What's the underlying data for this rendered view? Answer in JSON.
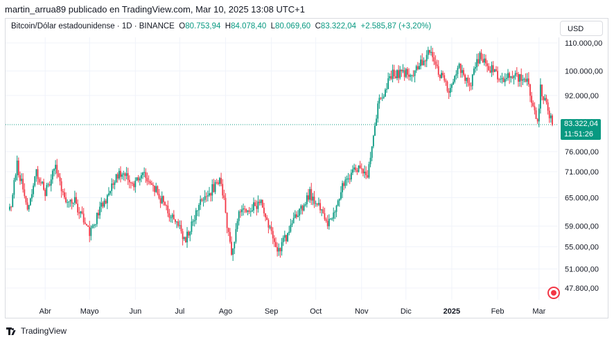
{
  "header": {
    "publisher": "martin_arrua89 publicado en TradingView.com, Mar 10, 2025 13:08 UTC+1"
  },
  "legend": {
    "symbol": "Bitcoin/Dólar estadounidense · 1D · BINANCE",
    "o_label": "O",
    "o_value": "80.753,94",
    "h_label": "H",
    "h_value": "84.078,40",
    "l_label": "L",
    "l_value": "80.069,60",
    "c_label": "C",
    "c_value": "83.322,04",
    "change": "+2.585,87 (+3,20%)"
  },
  "currency_button": "USD",
  "price_tag": {
    "price": "83.322,04",
    "countdown": "11:51:26"
  },
  "footer": {
    "brand": "TradingView"
  },
  "colors": {
    "up": "#089981",
    "down": "#f23645",
    "grid": "#f0f3fa",
    "text": "#131722"
  },
  "icons": [
    "tradingview-logo-icon",
    "economic-event-icon"
  ],
  "chart_data": {
    "type": "candlestick",
    "title": "Bitcoin/Dólar estadounidense · 1D · BINANCE",
    "y_scale": "log",
    "y_ticks": [
      {
        "value": 110000,
        "label": "110.000,00"
      },
      {
        "value": 100000,
        "label": "100.000,00"
      },
      {
        "value": 92000,
        "label": "92.000,00"
      },
      {
        "value": 76000,
        "label": "76.000,00"
      },
      {
        "value": 71000,
        "label": "71.000,00"
      },
      {
        "value": 65000,
        "label": "65.000,00"
      },
      {
        "value": 59000,
        "label": "59.000,00"
      },
      {
        "value": 55000,
        "label": "55.000,00"
      },
      {
        "value": 51000,
        "label": "51.000,00"
      },
      {
        "value": 47800,
        "label": "47.800,00"
      }
    ],
    "x_ticks": [
      {
        "date": "2024-04-01",
        "label": "Abr",
        "bold": false
      },
      {
        "date": "2024-05-01",
        "label": "Mayo",
        "bold": false
      },
      {
        "date": "2024-06-01",
        "label": "Jun",
        "bold": false
      },
      {
        "date": "2024-07-01",
        "label": "Jul",
        "bold": false
      },
      {
        "date": "2024-08-01",
        "label": "Ago",
        "bold": false
      },
      {
        "date": "2024-09-01",
        "label": "Sep",
        "bold": false
      },
      {
        "date": "2024-10-01",
        "label": "Oct",
        "bold": false
      },
      {
        "date": "2024-11-01",
        "label": "Nov",
        "bold": false
      },
      {
        "date": "2024-12-01",
        "label": "Dic",
        "bold": false
      },
      {
        "date": "2025-01-01",
        "label": "2025",
        "bold": true
      },
      {
        "date": "2025-02-01",
        "label": "Feb",
        "bold": false
      },
      {
        "date": "2025-03-01",
        "label": "Mar",
        "bold": false
      }
    ],
    "x_range": [
      "2024-03-08",
      "2025-03-10"
    ],
    "y_range": [
      45000,
      115000
    ],
    "last_close": 83322.04,
    "grid": true,
    "path": [
      [
        "2024-03-08",
        62000
      ],
      [
        "2024-03-13",
        72500
      ],
      [
        "2024-03-20",
        63000
      ],
      [
        "2024-03-26",
        71000
      ],
      [
        "2024-04-01",
        66000
      ],
      [
        "2024-04-08",
        72000
      ],
      [
        "2024-04-15",
        63000
      ],
      [
        "2024-04-20",
        65000
      ],
      [
        "2024-05-01",
        57500
      ],
      [
        "2024-05-10",
        63500
      ],
      [
        "2024-05-21",
        71000
      ],
      [
        "2024-06-01",
        68000
      ],
      [
        "2024-06-06",
        71500
      ],
      [
        "2024-06-15",
        66500
      ],
      [
        "2024-06-25",
        61000
      ],
      [
        "2024-07-05",
        56500
      ],
      [
        "2024-07-15",
        64500
      ],
      [
        "2024-07-29",
        68800
      ],
      [
        "2024-08-05",
        53500
      ],
      [
        "2024-08-10",
        61000
      ],
      [
        "2024-08-25",
        64000
      ],
      [
        "2024-09-06",
        54000
      ],
      [
        "2024-09-15",
        59500
      ],
      [
        "2024-09-27",
        65800
      ],
      [
        "2024-10-10",
        59500
      ],
      [
        "2024-10-21",
        69000
      ],
      [
        "2024-10-30",
        72500
      ],
      [
        "2024-11-05",
        69300
      ],
      [
        "2024-11-12",
        89000
      ],
      [
        "2024-11-22",
        99000
      ],
      [
        "2024-12-05",
        99500
      ],
      [
        "2024-12-17",
        106500
      ],
      [
        "2024-12-30",
        93500
      ],
      [
        "2025-01-06",
        102000
      ],
      [
        "2025-01-13",
        94500
      ],
      [
        "2025-01-20",
        106000
      ],
      [
        "2025-01-27",
        101000
      ],
      [
        "2025-02-03",
        97500
      ],
      [
        "2025-02-20",
        98000
      ],
      [
        "2025-02-28",
        84500
      ],
      [
        "2025-03-02",
        94200
      ],
      [
        "2025-03-05",
        90000
      ],
      [
        "2025-03-08",
        86000
      ],
      [
        "2025-03-10",
        83322
      ]
    ]
  }
}
